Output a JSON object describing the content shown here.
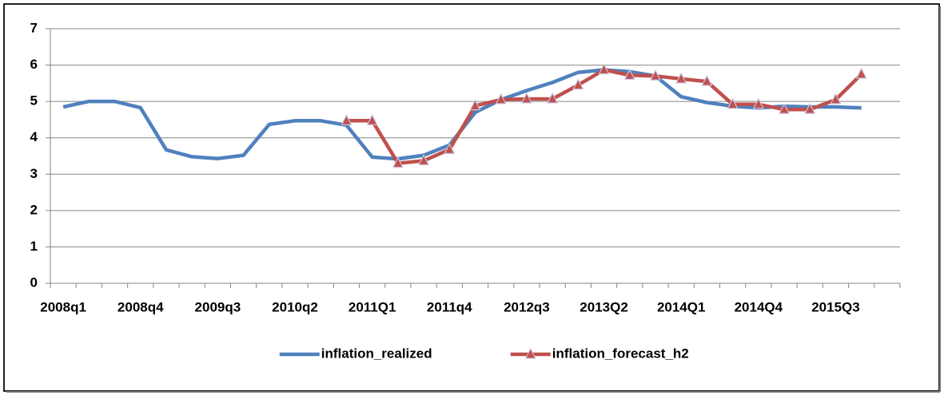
{
  "chart_data": {
    "type": "line",
    "categories": [
      "2008q1",
      null,
      null,
      "2008q4",
      null,
      null,
      "2009q3",
      null,
      null,
      "2010q2",
      null,
      null,
      "2011Q1",
      null,
      null,
      "2011q4",
      null,
      null,
      "2012q3",
      null,
      null,
      "2013Q2",
      null,
      null,
      "2014Q1",
      null,
      null,
      "2014Q4",
      null,
      null,
      "2015Q3",
      null,
      null
    ],
    "series": [
      {
        "name": "inflation_realized",
        "color": "#4f81bd",
        "values": [
          4.85,
          5.0,
          5.0,
          4.83,
          3.67,
          3.48,
          3.43,
          3.52,
          4.37,
          4.47,
          4.47,
          4.35,
          3.47,
          3.42,
          3.52,
          3.8,
          4.7,
          5.05,
          5.3,
          5.52,
          5.8,
          5.87,
          5.82,
          5.7,
          5.13,
          4.97,
          4.87,
          4.82,
          4.87,
          4.85,
          4.85,
          4.82,
          null
        ]
      },
      {
        "name": "inflation_forecast_h2",
        "color": "#c0504d",
        "marker": "triangle",
        "values": [
          null,
          null,
          null,
          null,
          null,
          null,
          null,
          null,
          null,
          null,
          null,
          4.47,
          4.47,
          3.3,
          3.37,
          3.68,
          4.88,
          5.05,
          5.07,
          5.07,
          5.45,
          5.87,
          5.72,
          5.7,
          5.62,
          5.55,
          4.92,
          4.92,
          4.78,
          4.78,
          5.05,
          5.75,
          null
        ]
      }
    ],
    "ylim": [
      0,
      7
    ],
    "yticks": [
      0,
      1,
      2,
      3,
      4,
      5,
      6,
      7
    ],
    "grid": true,
    "legend": "bottom"
  }
}
